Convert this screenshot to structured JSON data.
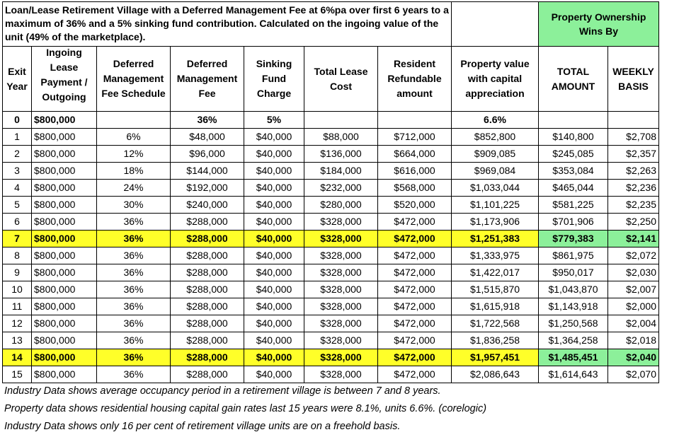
{
  "title": "Loan/Lease Retirement Village with a Deferred Management Fee at 6%pa over first 6 years to a maximum of 36% and a 5% sinking fund contribution. Calculated on the ingoing value of the unit (49% of the marketplace).",
  "ownership_title": "Property Ownership Wins By",
  "headers": {
    "exit_year": "Exit Year",
    "ingoing": "Ingoing Lease Payment / Outgoing Value",
    "dmf_schedule": "Deferred Management Fee Schedule",
    "dmf": "Deferred Management Fee",
    "sinking": "Sinking Fund Charge",
    "total_lease": "Total Lease Cost",
    "refundable": "Resident Refundable amount",
    "property_value": "Property value with capital appreciation",
    "total_amount": "TOTAL AMOUNT",
    "weekly_basis": "WEEKLY BASIS"
  },
  "row0": {
    "year": "0",
    "ingoing": "$800,000",
    "dmf": "36%",
    "sinking": "5%",
    "property_value": "6.6%"
  },
  "rows": [
    {
      "year": "1",
      "ingoing": "$800,000",
      "sched": "6%",
      "dmf": "$48,000",
      "sinking": "$40,000",
      "total": "$88,000",
      "refund": "$712,000",
      "pv": "$852,800",
      "amount": "$140,800",
      "weekly": "$2,708",
      "hl": false
    },
    {
      "year": "2",
      "ingoing": "$800,000",
      "sched": "12%",
      "dmf": "$96,000",
      "sinking": "$40,000",
      "total": "$136,000",
      "refund": "$664,000",
      "pv": "$909,085",
      "amount": "$245,085",
      "weekly": "$2,357",
      "hl": false
    },
    {
      "year": "3",
      "ingoing": "$800,000",
      "sched": "18%",
      "dmf": "$144,000",
      "sinking": "$40,000",
      "total": "$184,000",
      "refund": "$616,000",
      "pv": "$969,084",
      "amount": "$353,084",
      "weekly": "$2,263",
      "hl": false
    },
    {
      "year": "4",
      "ingoing": "$800,000",
      "sched": "24%",
      "dmf": "$192,000",
      "sinking": "$40,000",
      "total": "$232,000",
      "refund": "$568,000",
      "pv": "$1,033,044",
      "amount": "$465,044",
      "weekly": "$2,236",
      "hl": false
    },
    {
      "year": "5",
      "ingoing": "$800,000",
      "sched": "30%",
      "dmf": "$240,000",
      "sinking": "$40,000",
      "total": "$280,000",
      "refund": "$520,000",
      "pv": "$1,101,225",
      "amount": "$581,225",
      "weekly": "$2,235",
      "hl": false
    },
    {
      "year": "6",
      "ingoing": "$800,000",
      "sched": "36%",
      "dmf": "$288,000",
      "sinking": "$40,000",
      "total": "$328,000",
      "refund": "$472,000",
      "pv": "$1,173,906",
      "amount": "$701,906",
      "weekly": "$2,250",
      "hl": false
    },
    {
      "year": "7",
      "ingoing": "$800,000",
      "sched": "36%",
      "dmf": "$288,000",
      "sinking": "$40,000",
      "total": "$328,000",
      "refund": "$472,000",
      "pv": "$1,251,383",
      "amount": "$779,383",
      "weekly": "$2,141",
      "hl": true
    },
    {
      "year": "8",
      "ingoing": "$800,000",
      "sched": "36%",
      "dmf": "$288,000",
      "sinking": "$40,000",
      "total": "$328,000",
      "refund": "$472,000",
      "pv": "$1,333,975",
      "amount": "$861,975",
      "weekly": "$2,072",
      "hl": false
    },
    {
      "year": "9",
      "ingoing": "$800,000",
      "sched": "36%",
      "dmf": "$288,000",
      "sinking": "$40,000",
      "total": "$328,000",
      "refund": "$472,000",
      "pv": "$1,422,017",
      "amount": "$950,017",
      "weekly": "$2,030",
      "hl": false
    },
    {
      "year": "10",
      "ingoing": "$800,000",
      "sched": "36%",
      "dmf": "$288,000",
      "sinking": "$40,000",
      "total": "$328,000",
      "refund": "$472,000",
      "pv": "$1,515,870",
      "amount": "$1,043,870",
      "weekly": "$2,007",
      "hl": false
    },
    {
      "year": "11",
      "ingoing": "$800,000",
      "sched": "36%",
      "dmf": "$288,000",
      "sinking": "$40,000",
      "total": "$328,000",
      "refund": "$472,000",
      "pv": "$1,615,918",
      "amount": "$1,143,918",
      "weekly": "$2,000",
      "hl": false
    },
    {
      "year": "12",
      "ingoing": "$800,000",
      "sched": "36%",
      "dmf": "$288,000",
      "sinking": "$40,000",
      "total": "$328,000",
      "refund": "$472,000",
      "pv": "$1,722,568",
      "amount": "$1,250,568",
      "weekly": "$2,004",
      "hl": false
    },
    {
      "year": "13",
      "ingoing": "$800,000",
      "sched": "36%",
      "dmf": "$288,000",
      "sinking": "$40,000",
      "total": "$328,000",
      "refund": "$472,000",
      "pv": "$1,836,258",
      "amount": "$1,364,258",
      "weekly": "$2,018",
      "hl": false
    },
    {
      "year": "14",
      "ingoing": "$800,000",
      "sched": "36%",
      "dmf": "$288,000",
      "sinking": "$40,000",
      "total": "$328,000",
      "refund": "$472,000",
      "pv": "$1,957,451",
      "amount": "$1,485,451",
      "weekly": "$2,040",
      "hl": true
    },
    {
      "year": "15",
      "ingoing": "$800,000",
      "sched": "36%",
      "dmf": "$288,000",
      "sinking": "$40,000",
      "total": "$328,000",
      "refund": "$472,000",
      "pv": "$2,086,643",
      "amount": "$1,614,643",
      "weekly": "$2,070",
      "hl": false
    }
  ],
  "notes": [
    "Industry Data shows average occupancy period in a retirement village is between 7 and 8 years.",
    "Property data shows residential housing capital gain rates last 15 years were 8.1%, units 6.6%. (corelogic)",
    "Industry Data shows only 16 per cent of retirement village units are on a freehold basis."
  ],
  "colors": {
    "highlight_yellow": "#ffff29",
    "highlight_green": "#8cf09a"
  }
}
